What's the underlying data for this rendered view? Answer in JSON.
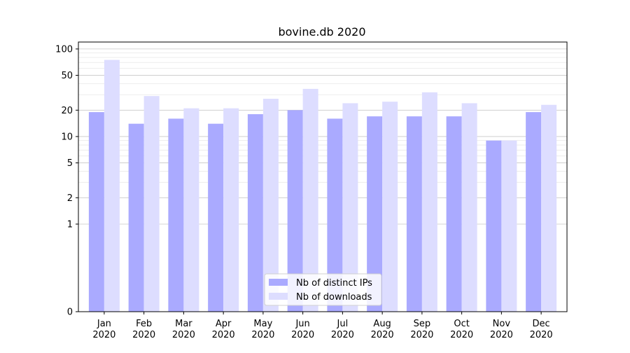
{
  "chart_data": {
    "type": "bar",
    "title": "bovine.db 2020",
    "xlabel": "",
    "ylabel": "",
    "yscale": "symlog",
    "ylim": [
      0,
      120
    ],
    "yticks": [
      0,
      1,
      2,
      5,
      10,
      20,
      50,
      100
    ],
    "grid": true,
    "legend_position": "bottom-center",
    "categories": [
      "Jan\n2020",
      "Feb\n2020",
      "Mar\n2020",
      "Apr\n2020",
      "May\n2020",
      "Jun\n2020",
      "Jul\n2020",
      "Aug\n2020",
      "Sep\n2020",
      "Oct\n2020",
      "Nov\n2020",
      "Dec\n2020"
    ],
    "series": [
      {
        "name": "Nb of distinct IPs",
        "color": "#aaaaff",
        "values": [
          19,
          14,
          16,
          14,
          18,
          20,
          16,
          17,
          17,
          17,
          9,
          19
        ]
      },
      {
        "name": "Nb of downloads",
        "color": "#ddddff",
        "values": [
          75,
          29,
          21,
          21,
          27,
          35,
          24,
          25,
          32,
          24,
          9,
          23
        ]
      }
    ]
  }
}
